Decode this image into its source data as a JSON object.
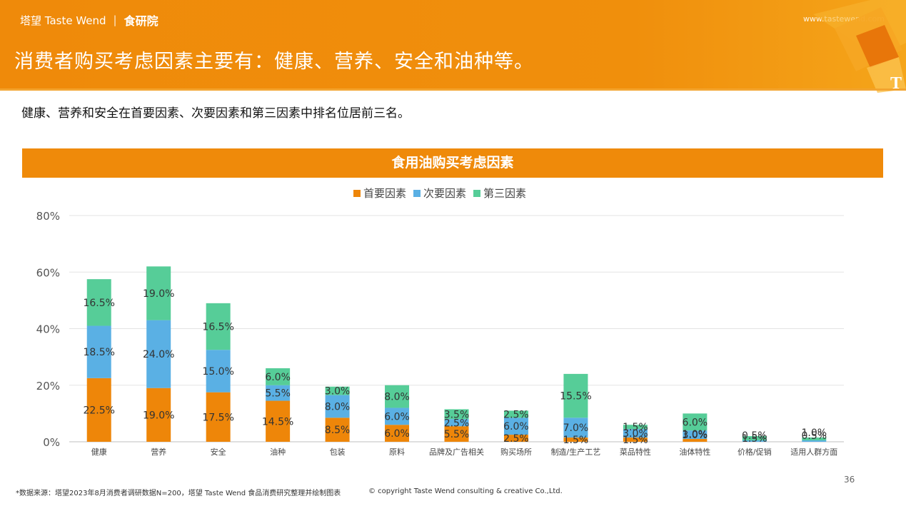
{
  "header": {
    "brand": "塔望 Taste Wend",
    "brand_sub": "食研院",
    "website": "www.tastewend.com",
    "headline": "消费者购买考虑因素主要有：健康、营养、安全和油种等。"
  },
  "subheadline": "健康、营养和安全在首要因素、次要因素和第三因素中排名位居前三名。",
  "chart_banner": "食用油购买考虑因素",
  "chart_data": {
    "type": "bar",
    "stacked": true,
    "title": "食用油购买考虑因素",
    "categories": [
      "健康",
      "营养",
      "安全",
      "油种",
      "包装",
      "原料",
      "品牌及广告相关",
      "购买场所",
      "制造/生产工艺",
      "菜品特性",
      "油体特性",
      "价格/促销",
      "适用人群方面"
    ],
    "series": [
      {
        "name": "首要因素",
        "color": "#ee8609",
        "values": [
          22.5,
          19.0,
          17.5,
          14.5,
          8.5,
          6.0,
          5.5,
          2.5,
          1.5,
          1.5,
          1.0,
          0,
          0
        ],
        "labels": [
          "22.5%",
          "19.0%",
          "17.5%",
          "14.5%",
          "8.5%",
          "6.0%",
          "5.5%",
          "2.5%",
          "1.5%",
          "1.5%",
          "1.0%",
          "",
          ""
        ]
      },
      {
        "name": "次要因素",
        "color": "#5ab0e4",
        "values": [
          18.5,
          24.0,
          15.0,
          5.5,
          8.0,
          6.0,
          2.5,
          6.0,
          7.0,
          3.0,
          3.0,
          0.5,
          0.5
        ],
        "labels": [
          "18.5%",
          "24.0%",
          "15.0%",
          "5.5%",
          "8.0%",
          "6.0%",
          "2.5%",
          "6.0%",
          "7.0%",
          "3.0%",
          "3.0%",
          "0.5%",
          "0.5%"
        ]
      },
      {
        "name": "第三因素",
        "color": "#56cd98",
        "values": [
          16.5,
          19.0,
          16.5,
          6.0,
          3.0,
          8.0,
          3.5,
          2.5,
          15.5,
          1.5,
          6.0,
          1.5,
          1.0
        ],
        "labels": [
          "16.5%",
          "19.0%",
          "16.5%",
          "6.0%",
          "3.0%",
          "8.0%",
          "3.5%",
          "2.5%",
          "15.5%",
          "1.5%",
          "6.0%",
          "1.5%",
          "1.0%"
        ]
      }
    ],
    "ylim": [
      0,
      80
    ],
    "yticks": [
      "0%",
      "20%",
      "40%",
      "60%",
      "80%"
    ],
    "grid": true,
    "legend": "top-center"
  },
  "footnote": "*数据来源：塔望2023年8月消费者调研数据N=200，塔望 Taste Wend 食品消费研究整理并绘制图表",
  "copyright": "© copyright Taste Wend consulting & creative Co.,Ltd.",
  "page_number": "36"
}
